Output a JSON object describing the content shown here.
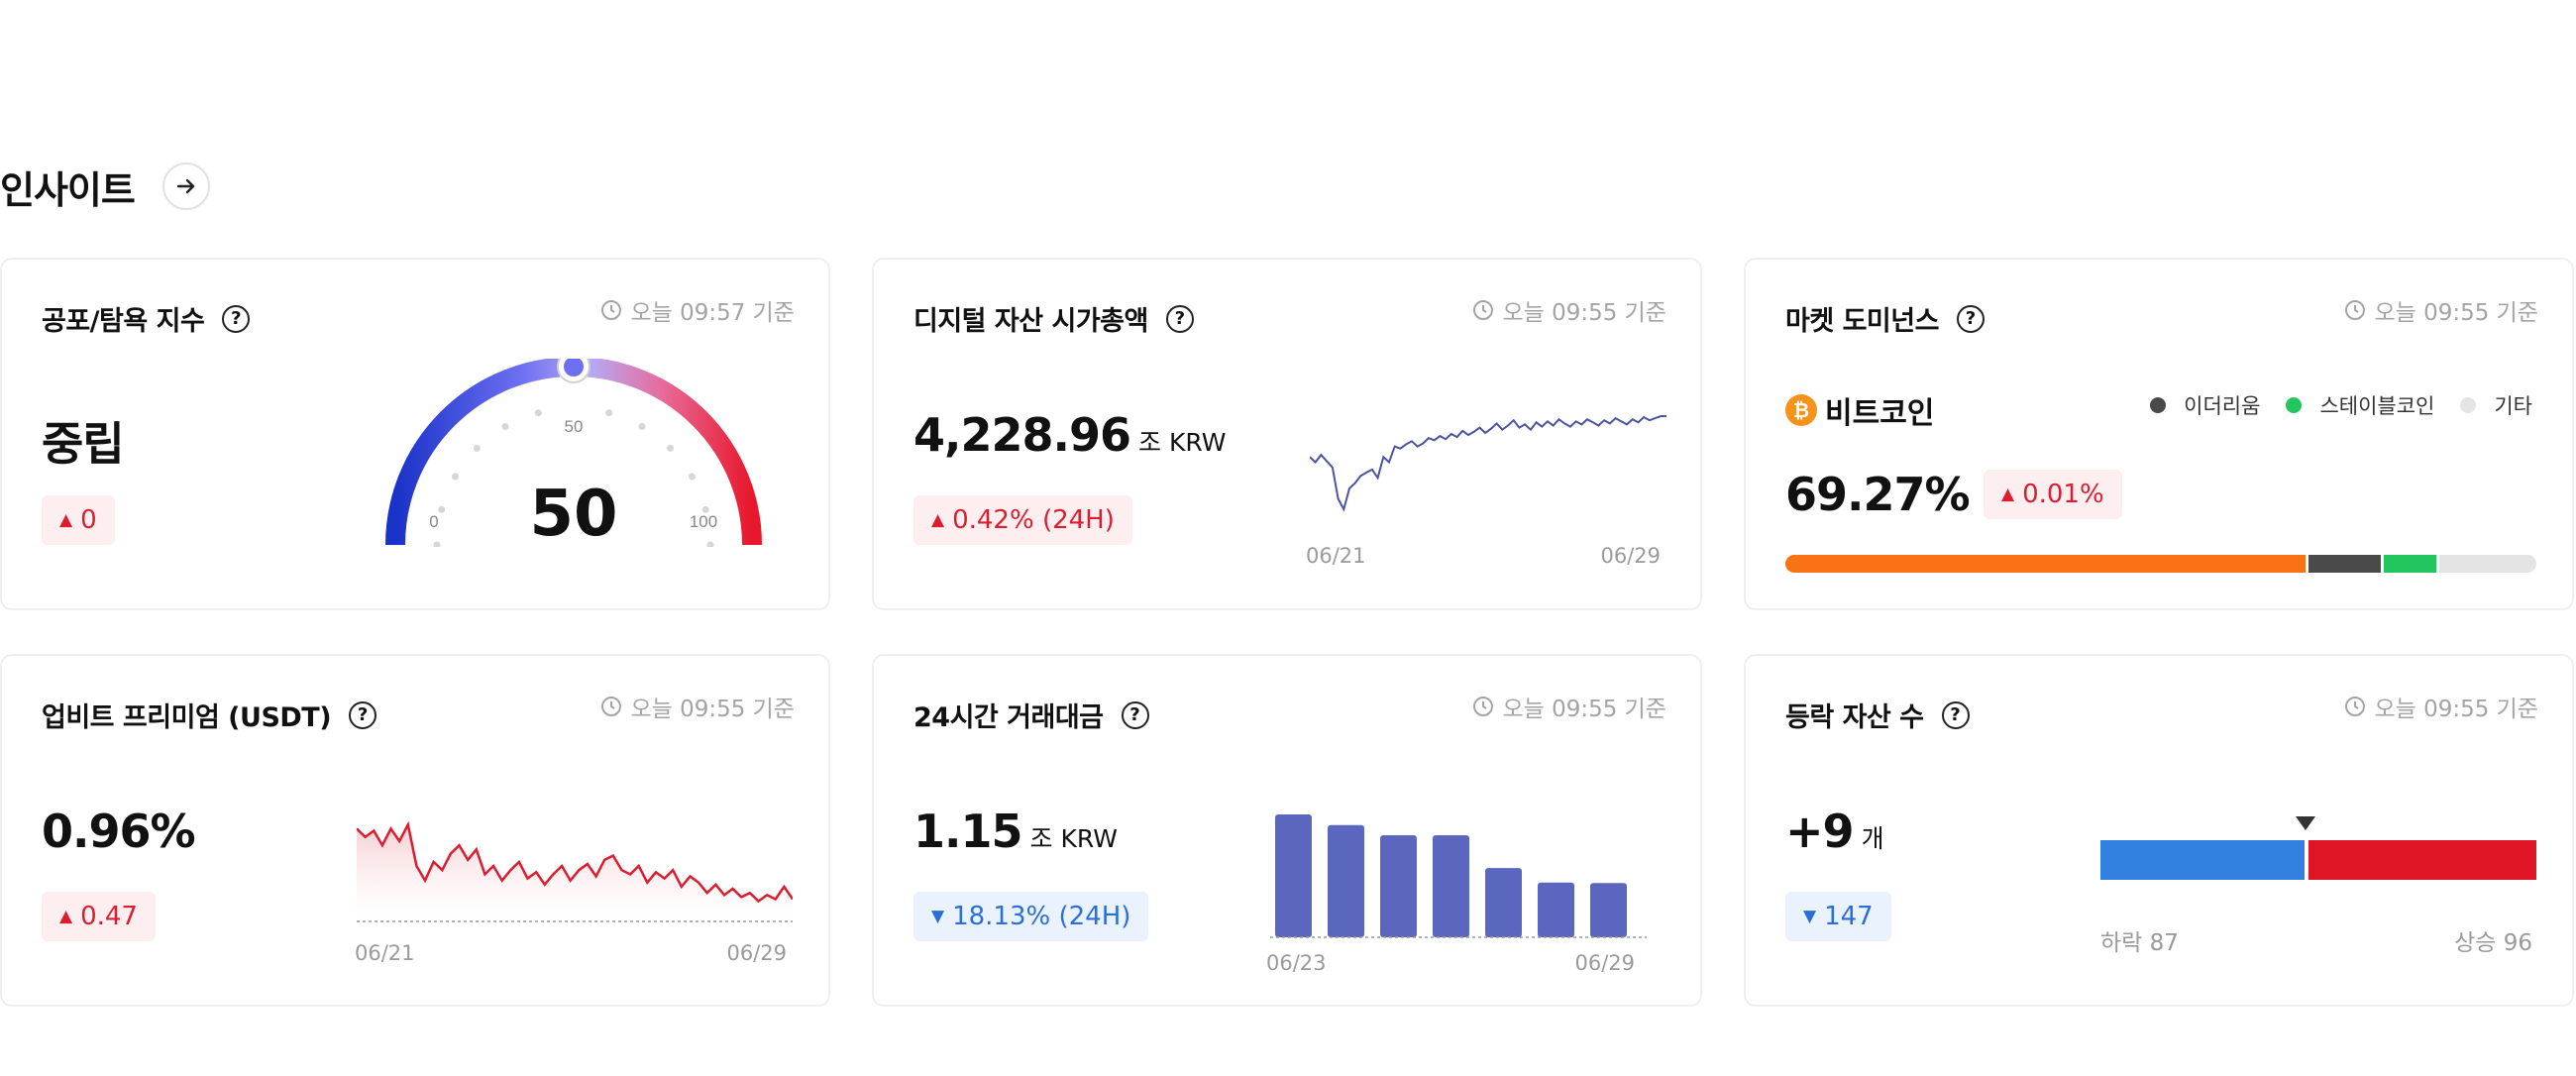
{
  "section": {
    "title": "인사이트"
  },
  "cards": {
    "fear_greed": {
      "title": "공포/탐욕 지수",
      "timestamp": "오늘 09:57 기준",
      "status": "중립",
      "change": "0",
      "gauge": {
        "value": 50,
        "value_label": "50",
        "tick_mid": "50",
        "tick_min": "0",
        "tick_max": "100"
      }
    },
    "market_cap": {
      "title": "디지털 자산 시가총액",
      "timestamp": "오늘 09:55 기준",
      "value": "4,228.96",
      "unit": "조 KRW",
      "change": "0.42% (24H)",
      "x_start": "06/21",
      "x_end": "06/29"
    },
    "dominance": {
      "title": "마켓 도미넌스",
      "timestamp": "오늘 09:55 기준",
      "coin": "비트코인",
      "value": "69.27%",
      "change": "0.01%",
      "legend": [
        {
          "label": "이더리움",
          "color": "#4a4a4a"
        },
        {
          "label": "스테이블코인",
          "color": "#22c55e"
        },
        {
          "label": "기타",
          "color": "#e4e4e4"
        }
      ],
      "segments": [
        {
          "name": "비트코인",
          "share": 69.27,
          "color": "#f97316"
        },
        {
          "name": "이더리움",
          "share": 10.0,
          "color": "#4a4a4a"
        },
        {
          "name": "스테이블코인",
          "share": 7.4,
          "color": "#22c55e"
        },
        {
          "name": "기타",
          "share": 13.33,
          "color": "#e4e4e4"
        }
      ]
    },
    "premium": {
      "title": "업비트 프리미엄 (USDT)",
      "timestamp": "오늘 09:55 기준",
      "value": "0.96%",
      "change": "0.47",
      "x_start": "06/21",
      "x_end": "06/29"
    },
    "volume": {
      "title": "24시간 거래대금",
      "timestamp": "오늘 09:55 기준",
      "value": "1.15",
      "unit": "조 KRW",
      "change": "18.13% (24H)",
      "x_start": "06/23",
      "x_end": "06/29"
    },
    "updown": {
      "title": "등락 자산 수",
      "timestamp": "오늘 09:55 기준",
      "value": "+9",
      "unit": "개",
      "change": "147",
      "down_label": "하락 87",
      "up_label": "상승 96"
    }
  },
  "chart_data": [
    {
      "type": "line",
      "name": "market_cap",
      "x_labels": [
        "06/21",
        "06/29"
      ],
      "values": [
        4190,
        4185,
        4192,
        4186,
        4180,
        4150,
        4140,
        4160,
        4165,
        4172,
        4175,
        4178,
        4170,
        4190,
        4185,
        4200,
        4198,
        4202,
        4205,
        4200,
        4203,
        4208,
        4206,
        4210,
        4207,
        4212,
        4209,
        4215,
        4211,
        4214,
        4218,
        4213,
        4217,
        4222,
        4216,
        4220,
        4225,
        4218,
        4221,
        4216,
        4223,
        4219,
        4224,
        4220,
        4226,
        4222,
        4219,
        4224,
        4221,
        4226,
        4223,
        4220,
        4225,
        4222,
        4227,
        4224,
        4221,
        4226,
        4223,
        4228,
        4225,
        4227,
        4229,
        4228.96
      ],
      "color": "#4a55a2"
    },
    {
      "type": "area",
      "name": "premium",
      "x_labels": [
        "06/21",
        "06/29"
      ],
      "values": [
        1.3,
        1.26,
        1.29,
        1.22,
        1.3,
        1.24,
        1.32,
        1.12,
        1.05,
        1.14,
        1.1,
        1.18,
        1.22,
        1.15,
        1.2,
        1.08,
        1.12,
        1.05,
        1.1,
        1.14,
        1.06,
        1.09,
        1.03,
        1.08,
        1.12,
        1.05,
        1.1,
        1.13,
        1.07,
        1.15,
        1.17,
        1.1,
        1.08,
        1.12,
        1.04,
        1.09,
        1.06,
        1.1,
        1.02,
        1.07,
        1.04,
        0.99,
        1.03,
        0.98,
        1.01,
        0.97,
        0.99,
        0.95,
        0.98,
        0.96,
        1.02,
        0.96
      ],
      "color": "#dc1c2f"
    },
    {
      "type": "bar",
      "name": "volume",
      "x_labels": [
        "06/23",
        "06/29"
      ],
      "values": [
        1.95,
        1.78,
        1.62,
        1.62,
        1.1,
        0.87,
        0.86
      ],
      "color": "#5b66bf"
    }
  ]
}
